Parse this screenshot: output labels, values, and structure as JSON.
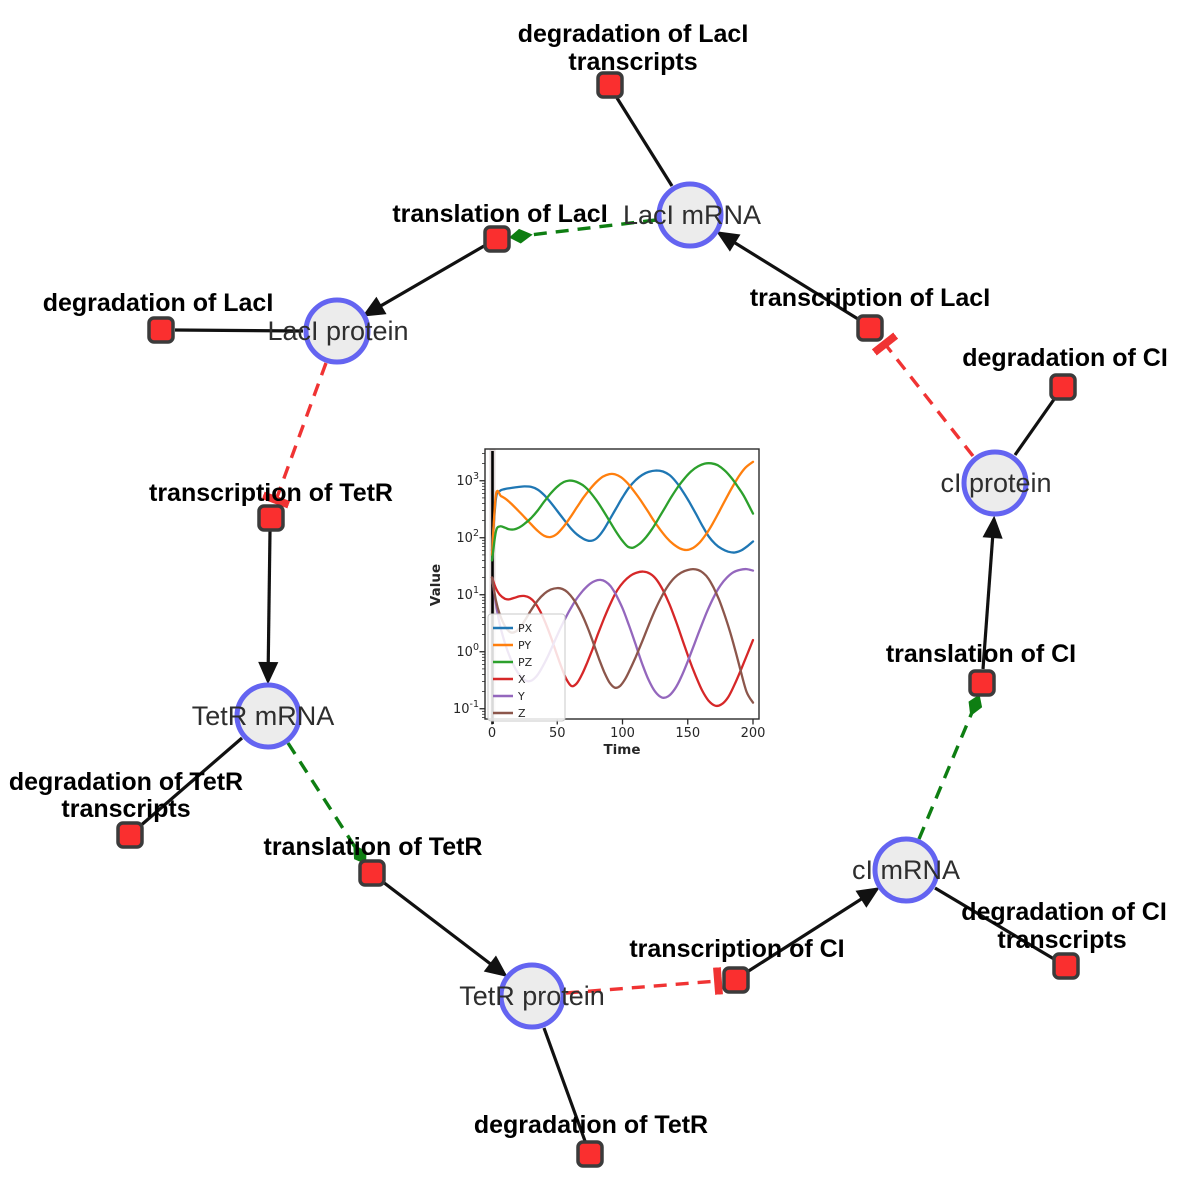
{
  "figure": {
    "species_nodes": [
      {
        "label": "LacI mRNA"
      },
      {
        "label": "LacI protein"
      },
      {
        "label": "TetR mRNA"
      },
      {
        "label": "TetR protein"
      },
      {
        "label": "cI mRNA"
      },
      {
        "label": "cI protein"
      }
    ],
    "reaction_nodes": [
      {
        "label_line1": "degradation of LacI",
        "label_line2": "transcripts"
      },
      {
        "label": "translation of LacI"
      },
      {
        "label": "degradation of LacI"
      },
      {
        "label": "transcription of LacI"
      },
      {
        "label": "degradation of CI"
      },
      {
        "label": "transcription of TetR"
      },
      {
        "label": "translation of CI"
      },
      {
        "label_line1": "degradation of TetR",
        "label_line2": "transcripts"
      },
      {
        "label": "translation of TetR"
      },
      {
        "label": "transcription of CI"
      },
      {
        "label_line1": "degradation of CI",
        "label_line2": "transcripts"
      },
      {
        "label": "degradation of TetR"
      }
    ],
    "colors": {
      "species_fill": "#ececec",
      "species_border": "#6464f1",
      "reaction_fill": "#fa2f2f",
      "reaction_border": "#3b3b3b",
      "edge": "#111111",
      "activation_edge": "#0e7e12",
      "inhibition_edge": "#f03333"
    }
  },
  "chart_data": {
    "type": "line",
    "title": "",
    "xlabel": "Time",
    "ylabel": "Value",
    "x_ticks": [
      0,
      50,
      100,
      150,
      200
    ],
    "y_scale": "log",
    "y_tick_exponents": [
      -1,
      0,
      1,
      2,
      3
    ],
    "xlim": [
      0,
      200
    ],
    "ylim_log10": [
      -1.18,
      3.56
    ],
    "grid": false,
    "legend_position": "lower left",
    "series": [
      {
        "name": "PX",
        "color": "#1f77b4",
        "points": [
          [
            0,
            60
          ],
          [
            3,
            480
          ],
          [
            6,
            660
          ],
          [
            10,
            715
          ],
          [
            15,
            750
          ],
          [
            20,
            775
          ],
          [
            25,
            795
          ],
          [
            30,
            780
          ],
          [
            35,
            700
          ],
          [
            40,
            560
          ],
          [
            45,
            415
          ],
          [
            50,
            295
          ],
          [
            55,
            210
          ],
          [
            60,
            150
          ],
          [
            65,
            115
          ],
          [
            70,
            96
          ],
          [
            75,
            88
          ],
          [
            80,
            97
          ],
          [
            85,
            132
          ],
          [
            90,
            205
          ],
          [
            95,
            325
          ],
          [
            100,
            510
          ],
          [
            105,
            760
          ],
          [
            110,
            1020
          ],
          [
            115,
            1260
          ],
          [
            120,
            1430
          ],
          [
            126,
            1510
          ],
          [
            131,
            1450
          ],
          [
            136,
            1260
          ],
          [
            141,
            960
          ],
          [
            146,
            660
          ],
          [
            151,
            430
          ],
          [
            156,
            270
          ],
          [
            161,
            165
          ],
          [
            166,
            106
          ],
          [
            171,
            78
          ],
          [
            176,
            64
          ],
          [
            181,
            57
          ],
          [
            186,
            55
          ],
          [
            191,
            60
          ],
          [
            196,
            72
          ],
          [
            200,
            86
          ]
        ]
      },
      {
        "name": "PY",
        "color": "#ff7f0e",
        "points": [
          [
            0,
            50
          ],
          [
            3,
            560
          ],
          [
            7,
            535
          ],
          [
            11,
            470
          ],
          [
            15,
            390
          ],
          [
            20,
            300
          ],
          [
            25,
            228
          ],
          [
            30,
            172
          ],
          [
            35,
            132
          ],
          [
            40,
            108
          ],
          [
            45,
            103
          ],
          [
            50,
            118
          ],
          [
            55,
            158
          ],
          [
            60,
            228
          ],
          [
            65,
            340
          ],
          [
            70,
            505
          ],
          [
            75,
            710
          ],
          [
            80,
            950
          ],
          [
            85,
            1180
          ],
          [
            90,
            1310
          ],
          [
            94,
            1300
          ],
          [
            99,
            1150
          ],
          [
            104,
            900
          ],
          [
            109,
            650
          ],
          [
            114,
            450
          ],
          [
            119,
            302
          ],
          [
            124,
            200
          ],
          [
            129,
            138
          ],
          [
            134,
            99
          ],
          [
            139,
            77
          ],
          [
            144,
            65
          ],
          [
            149,
            61
          ],
          [
            154,
            66
          ],
          [
            159,
            82
          ],
          [
            164,
            115
          ],
          [
            169,
            175
          ],
          [
            174,
            285
          ],
          [
            179,
            470
          ],
          [
            184,
            760
          ],
          [
            189,
            1180
          ],
          [
            194,
            1680
          ],
          [
            200,
            2150
          ]
        ]
      },
      {
        "name": "PZ",
        "color": "#2ca02c",
        "points": [
          [
            0,
            40
          ],
          [
            3,
            128
          ],
          [
            6,
            158
          ],
          [
            10,
            150
          ],
          [
            13,
            141
          ],
          [
            17,
            140
          ],
          [
            21,
            152
          ],
          [
            25,
            176
          ],
          [
            30,
            222
          ],
          [
            35,
            300
          ],
          [
            40,
            430
          ],
          [
            45,
            600
          ],
          [
            50,
            790
          ],
          [
            55,
            950
          ],
          [
            59,
            1005
          ],
          [
            63,
            985
          ],
          [
            67,
            905
          ],
          [
            71,
            790
          ],
          [
            75,
            640
          ],
          [
            80,
            455
          ],
          [
            85,
            305
          ],
          [
            90,
            198
          ],
          [
            95,
            128
          ],
          [
            100,
            88
          ],
          [
            104,
            70
          ],
          [
            108,
            67
          ],
          [
            113,
            78
          ],
          [
            118,
            102
          ],
          [
            123,
            146
          ],
          [
            128,
            225
          ],
          [
            133,
            350
          ],
          [
            138,
            545
          ],
          [
            143,
            810
          ],
          [
            148,
            1130
          ],
          [
            153,
            1490
          ],
          [
            158,
            1800
          ],
          [
            163,
            2000
          ],
          [
            168,
            2020
          ],
          [
            173,
            1870
          ],
          [
            178,
            1540
          ],
          [
            183,
            1160
          ],
          [
            188,
            810
          ],
          [
            193,
            540
          ],
          [
            200,
            265
          ]
        ]
      },
      {
        "name": "X",
        "color": "#d62728",
        "points": [
          [
            0,
            20
          ],
          [
            3,
            13
          ],
          [
            6,
            10
          ],
          [
            10,
            8.5
          ],
          [
            13,
            8.3
          ],
          [
            17,
            8.8
          ],
          [
            21,
            9.4
          ],
          [
            25,
            9.5
          ],
          [
            29,
            8.8
          ],
          [
            33,
            7.2
          ],
          [
            37,
            5.1
          ],
          [
            41,
            3.2
          ],
          [
            45,
            1.85
          ],
          [
            49,
            1.0
          ],
          [
            53,
            0.55
          ],
          [
            57,
            0.33
          ],
          [
            61,
            0.25
          ],
          [
            65,
            0.28
          ],
          [
            69,
            0.4
          ],
          [
            73,
            0.65
          ],
          [
            77,
            1.1
          ],
          [
            81,
            2.0
          ],
          [
            86,
            3.9
          ],
          [
            91,
            7.2
          ],
          [
            96,
            12
          ],
          [
            101,
            17
          ],
          [
            106,
            21.5
          ],
          [
            111,
            24.5
          ],
          [
            116,
            25.5
          ],
          [
            121,
            23.5
          ],
          [
            126,
            18.5
          ],
          [
            131,
            12
          ],
          [
            136,
            6.8
          ],
          [
            141,
            3.4
          ],
          [
            146,
            1.6
          ],
          [
            151,
            0.75
          ],
          [
            156,
            0.38
          ],
          [
            161,
            0.21
          ],
          [
            166,
            0.138
          ],
          [
            171,
            0.113
          ],
          [
            176,
            0.12
          ],
          [
            181,
            0.16
          ],
          [
            186,
            0.27
          ],
          [
            191,
            0.5
          ],
          [
            196,
            0.95
          ],
          [
            200,
            1.6
          ]
        ]
      },
      {
        "name": "Y",
        "color": "#9467bd",
        "points": [
          [
            0,
            20
          ],
          [
            3,
            7
          ],
          [
            6,
            3
          ],
          [
            10,
            1.4
          ],
          [
            14,
            0.78
          ],
          [
            18,
            0.5
          ],
          [
            22,
            0.37
          ],
          [
            26,
            0.31
          ],
          [
            30,
            0.31
          ],
          [
            34,
            0.37
          ],
          [
            38,
            0.51
          ],
          [
            42,
            0.76
          ],
          [
            46,
            1.2
          ],
          [
            50,
            1.95
          ],
          [
            55,
            3.4
          ],
          [
            60,
            5.6
          ],
          [
            65,
            8.6
          ],
          [
            70,
            12
          ],
          [
            75,
            15.5
          ],
          [
            79,
            17.5
          ],
          [
            83,
            18.2
          ],
          [
            87,
            17
          ],
          [
            91,
            14
          ],
          [
            95,
            10
          ],
          [
            100,
            5.8
          ],
          [
            105,
            2.9
          ],
          [
            110,
            1.35
          ],
          [
            115,
            0.62
          ],
          [
            120,
            0.32
          ],
          [
            125,
            0.2
          ],
          [
            130,
            0.158
          ],
          [
            135,
            0.165
          ],
          [
            140,
            0.22
          ],
          [
            145,
            0.36
          ],
          [
            150,
            0.68
          ],
          [
            155,
            1.35
          ],
          [
            160,
            2.7
          ],
          [
            165,
            5.2
          ],
          [
            170,
            9.2
          ],
          [
            175,
            14.5
          ],
          [
            180,
            20
          ],
          [
            185,
            24.8
          ],
          [
            190,
            27.3
          ],
          [
            195,
            28.2
          ],
          [
            200,
            26.5
          ]
        ]
      },
      {
        "name": "Z",
        "color": "#8c564b",
        "points": [
          [
            0,
            20
          ],
          [
            3,
            8
          ],
          [
            6,
            4.5
          ],
          [
            10,
            2.8
          ],
          [
            14,
            2.2
          ],
          [
            18,
            2.25
          ],
          [
            22,
            2.75
          ],
          [
            26,
            3.8
          ],
          [
            30,
            5.4
          ],
          [
            35,
            7.9
          ],
          [
            40,
            10.4
          ],
          [
            45,
            12.3
          ],
          [
            50,
            13.1
          ],
          [
            54,
            12.6
          ],
          [
            58,
            11
          ],
          [
            62,
            8.6
          ],
          [
            66,
            6.1
          ],
          [
            70,
            4.0
          ],
          [
            74,
            2.4
          ],
          [
            78,
            1.35
          ],
          [
            82,
            0.75
          ],
          [
            86,
            0.44
          ],
          [
            90,
            0.29
          ],
          [
            94,
            0.235
          ],
          [
            98,
            0.25
          ],
          [
            102,
            0.33
          ],
          [
            106,
            0.5
          ],
          [
            110,
            0.8
          ],
          [
            115,
            1.5
          ],
          [
            120,
            2.9
          ],
          [
            125,
            5.4
          ],
          [
            130,
            9.3
          ],
          [
            135,
            14.5
          ],
          [
            140,
            20
          ],
          [
            145,
            24.5
          ],
          [
            150,
            27.2
          ],
          [
            154,
            28.2
          ],
          [
            158,
            27.2
          ],
          [
            162,
            24
          ],
          [
            166,
            19
          ],
          [
            170,
            13
          ],
          [
            174,
            8.2
          ],
          [
            178,
            4.6
          ],
          [
            182,
            2.4
          ],
          [
            186,
            1.15
          ],
          [
            190,
            0.52
          ],
          [
            195,
            0.2
          ],
          [
            200,
            0.128
          ]
        ]
      }
    ]
  }
}
